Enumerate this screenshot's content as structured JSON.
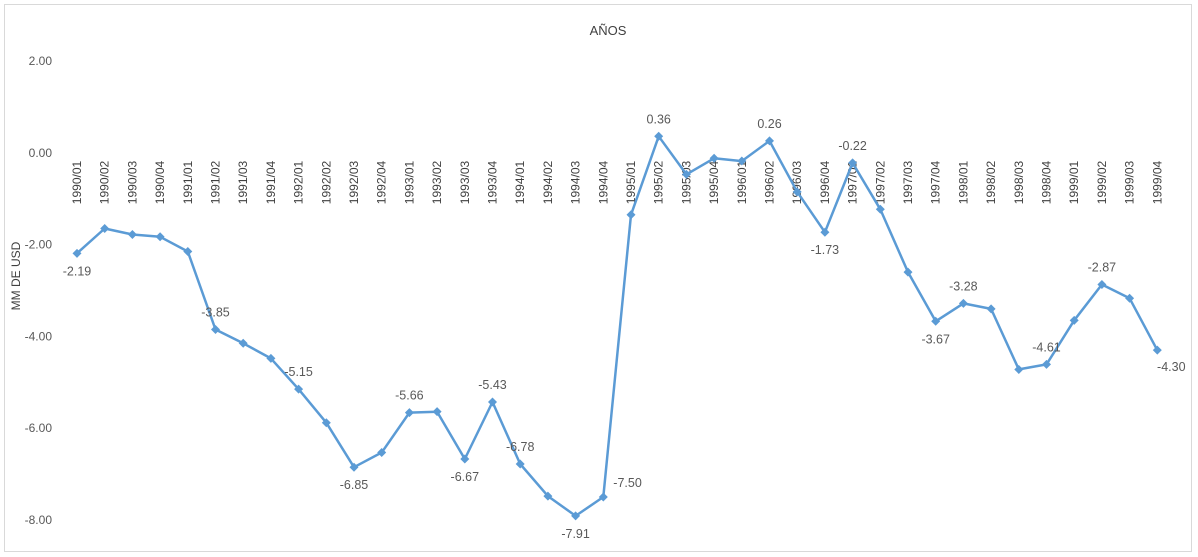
{
  "chart_data": {
    "type": "line",
    "title": "AÑOS",
    "ylabel": "MM DE USD",
    "xlabel": "",
    "ylim": [
      -8,
      2
    ],
    "yticks": [
      2,
      0,
      -2,
      -4,
      -6,
      -8
    ],
    "ytick_labels": [
      "2.00",
      "0.00",
      "-2.00",
      "-4.00",
      "-6.00",
      "-8.00"
    ],
    "grid": false,
    "line_color": "#5b9bd5",
    "categories": [
      "1990/01",
      "1990/02",
      "1990/03",
      "1990/04",
      "1991/01",
      "1991/02",
      "1991/03",
      "1991/04",
      "1992/01",
      "1992/02",
      "1992/03",
      "1992/04",
      "1993/01",
      "1993/02",
      "1993/03",
      "1993/04",
      "1994/01",
      "1994/02",
      "1994/03",
      "1994/04",
      "1995/01",
      "1995/02",
      "1995/03",
      "1995/04",
      "1996/01",
      "1996/02",
      "1996/03",
      "1996/04",
      "1997/01",
      "1997/02",
      "1997/03",
      "1997/04",
      "1998/01",
      "1998/02",
      "1998/03",
      "1998/04",
      "1999/01",
      "1999/02",
      "1999/03",
      "1999/04"
    ],
    "series": [
      {
        "values": [
          -2.19,
          -1.65,
          -1.78,
          -1.83,
          -2.15,
          -3.85,
          -4.15,
          -4.48,
          -5.15,
          -5.88,
          -6.85,
          -6.53,
          -5.66,
          -5.64,
          -6.67,
          -5.43,
          -6.78,
          -7.48,
          -7.91,
          -7.5,
          -1.35,
          0.36,
          -0.47,
          -0.12,
          -0.18,
          0.26,
          -0.85,
          -1.73,
          -0.22,
          -1.23,
          -2.6,
          -3.67,
          -3.28,
          -3.4,
          -4.72,
          -4.61,
          -3.65,
          -2.87,
          -3.17,
          -4.3
        ]
      }
    ],
    "data_labels": [
      {
        "index": 0,
        "text": "-2.19",
        "pos": "below"
      },
      {
        "index": 5,
        "text": "-3.85",
        "pos": "above"
      },
      {
        "index": 8,
        "text": "-5.15",
        "pos": "above"
      },
      {
        "index": 10,
        "text": "-6.85",
        "pos": "below"
      },
      {
        "index": 12,
        "text": "-5.66",
        "pos": "above"
      },
      {
        "index": 14,
        "text": "-6.67",
        "pos": "below"
      },
      {
        "index": 15,
        "text": "-5.43",
        "pos": "above"
      },
      {
        "index": 16,
        "text": "-6.78",
        "pos": "above"
      },
      {
        "index": 18,
        "text": "-7.91",
        "pos": "below"
      },
      {
        "index": 19,
        "text": "-7.50",
        "pos": "right"
      },
      {
        "index": 21,
        "text": "0.36",
        "pos": "above"
      },
      {
        "index": 25,
        "text": "0.26",
        "pos": "above"
      },
      {
        "index": 27,
        "text": "-1.73",
        "pos": "below"
      },
      {
        "index": 28,
        "text": "-0.22",
        "pos": "above"
      },
      {
        "index": 31,
        "text": "-3.67",
        "pos": "below"
      },
      {
        "index": 32,
        "text": "-3.28",
        "pos": "above"
      },
      {
        "index": 35,
        "text": "-4.61",
        "pos": "above"
      },
      {
        "index": 37,
        "text": "-2.87",
        "pos": "above"
      },
      {
        "index": 39,
        "text": "-4.30",
        "pos": "below-right"
      }
    ]
  }
}
